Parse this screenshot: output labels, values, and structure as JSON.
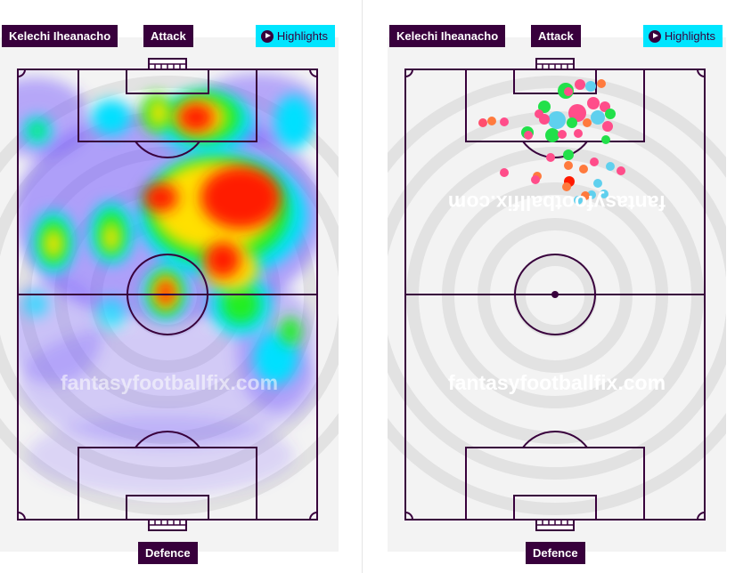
{
  "player_name": "Kelechi Iheanacho",
  "labels": {
    "attack": "Attack",
    "defence": "Defence",
    "highlights": "Highlights"
  },
  "watermark": "fantasyfootballfix.com",
  "icons": {
    "highlights": "play-circle-icon"
  },
  "colors": {
    "label_bg": "#38003c",
    "highlights_bg": "#00e5ff",
    "pitch_line": "#38003c",
    "pitch_bg": "#f4f4f4"
  }
}
